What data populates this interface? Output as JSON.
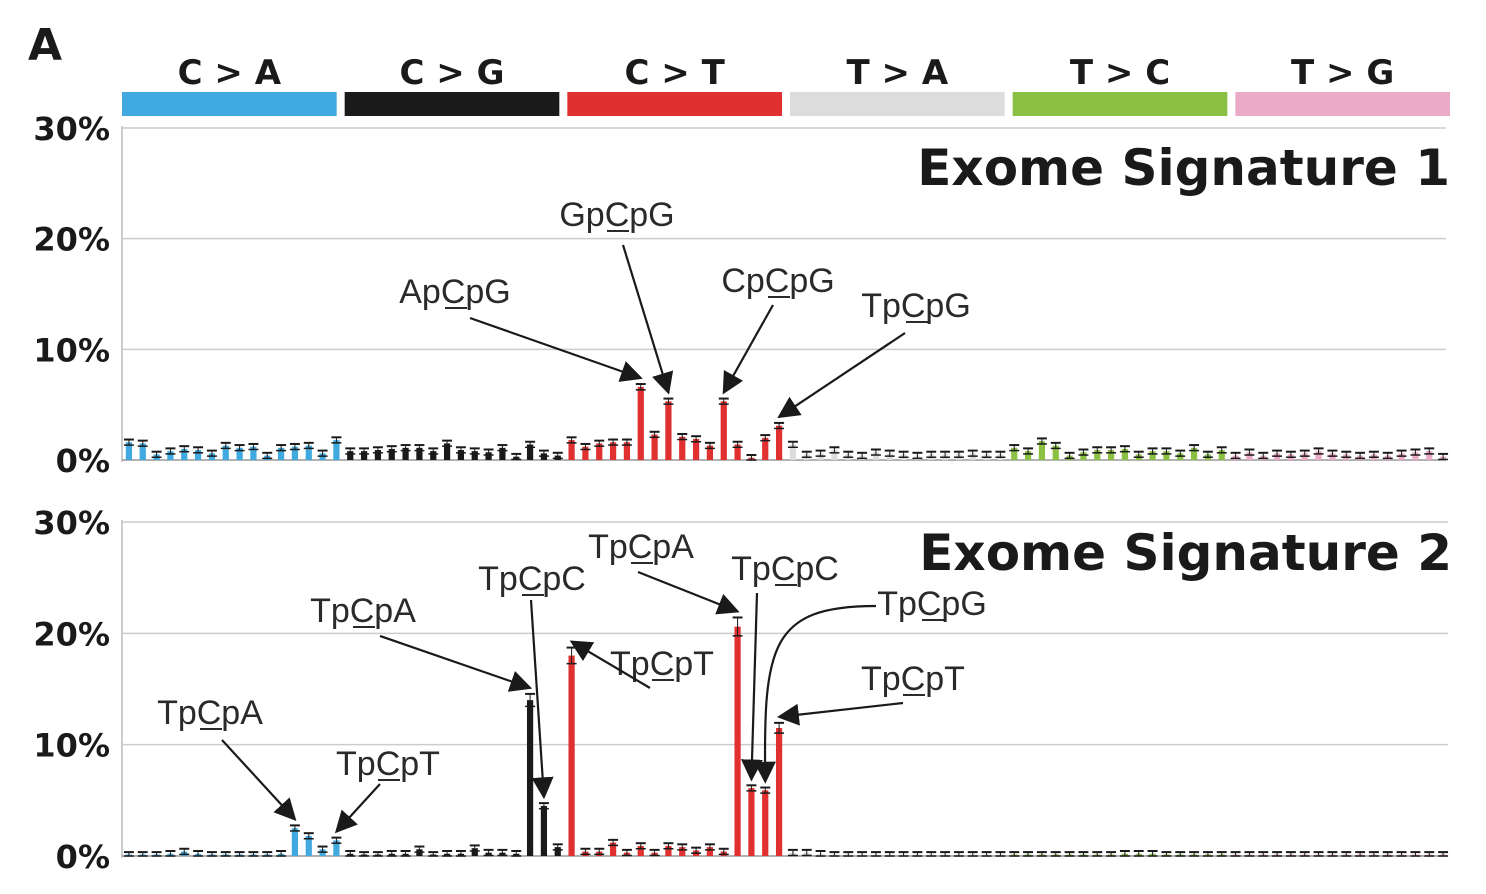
{
  "figure": {
    "panel_letter": "A"
  },
  "chart_data": [
    {
      "type": "bar",
      "title": "Exome Signature 1",
      "ylim": [
        0,
        30
      ],
      "yticks": [
        "0%",
        "10%",
        "20%",
        "30%"
      ],
      "grid": true,
      "categories": [
        "C > A",
        "C > G",
        "C > T",
        "T > A",
        "T > C",
        "T > G"
      ],
      "category_colors": [
        "#3fa9e0",
        "#1a1a1a",
        "#e03030",
        "#dcdcdc",
        "#8cc043",
        "#eaaac8"
      ],
      "values": [
        [
          1.6,
          1.5,
          0.5,
          0.8,
          1.0,
          0.9,
          0.6,
          1.3,
          1.1,
          1.2,
          0.4,
          1.1,
          1.2,
          1.3,
          0.6,
          1.8
        ],
        [
          0.8,
          0.8,
          0.9,
          1.0,
          1.1,
          1.1,
          0.8,
          1.5,
          0.9,
          0.8,
          0.7,
          1.1,
          0.3,
          1.4,
          0.6,
          0.4
        ],
        [
          1.8,
          1.2,
          1.5,
          1.6,
          1.6,
          6.6,
          2.3,
          5.3,
          2.1,
          1.9,
          1.3,
          5.3,
          1.4,
          0.2,
          2.0,
          3.1
        ],
        [
          1.4,
          0.5,
          0.6,
          0.9,
          0.5,
          0.4,
          0.7,
          0.6,
          0.5,
          0.4,
          0.5,
          0.5,
          0.5,
          0.6,
          0.5,
          0.5
        ],
        [
          1.1,
          0.8,
          1.7,
          1.3,
          0.4,
          0.7,
          0.9,
          0.9,
          1.0,
          0.5,
          0.8,
          0.8,
          0.6,
          1.1,
          0.5,
          0.9
        ],
        [
          0.4,
          0.7,
          0.4,
          0.6,
          0.5,
          0.6,
          0.8,
          0.6,
          0.5,
          0.4,
          0.5,
          0.4,
          0.6,
          0.7,
          0.8,
          0.3
        ]
      ],
      "annotations": [
        {
          "text": "ApCpG",
          "category": 2,
          "index": 5
        },
        {
          "text": "GpCpG",
          "category": 2,
          "index": 7
        },
        {
          "text": "CpCpG",
          "category": 2,
          "index": 11
        },
        {
          "text": "TpCpG",
          "category": 2,
          "index": 15
        }
      ]
    },
    {
      "type": "bar",
      "title": "Exome Signature 2",
      "ylim": [
        0,
        30
      ],
      "yticks": [
        "0%",
        "10%",
        "20%",
        "30%"
      ],
      "grid": true,
      "categories": [
        "C > A",
        "C > G",
        "C > T",
        "T > A",
        "T > C",
        "T > G"
      ],
      "category_colors": [
        "#3fa9e0",
        "#1a1a1a",
        "#e03030",
        "#dcdcdc",
        "#8cc043",
        "#eaaac8"
      ],
      "values": [
        [
          0.1,
          0.1,
          0.1,
          0.2,
          0.4,
          0.2,
          0.1,
          0.1,
          0.1,
          0.1,
          0.1,
          0.2,
          2.5,
          1.8,
          0.6,
          1.4
        ],
        [
          0.2,
          0.1,
          0.1,
          0.2,
          0.2,
          0.6,
          0.1,
          0.2,
          0.2,
          0.7,
          0.3,
          0.3,
          0.2,
          14.0,
          4.5,
          0.8
        ],
        [
          18.0,
          0.4,
          0.4,
          1.2,
          0.3,
          0.9,
          0.3,
          0.9,
          0.8,
          0.5,
          0.8,
          0.4,
          20.6,
          6.1,
          5.9,
          11.5
        ],
        [
          0.3,
          0.3,
          0.2,
          0.1,
          0.1,
          0.1,
          0.1,
          0.1,
          0.1,
          0.1,
          0.1,
          0.1,
          0.1,
          0.1,
          0.1,
          0.1
        ],
        [
          0.1,
          0.1,
          0.1,
          0.1,
          0.1,
          0.1,
          0.1,
          0.1,
          0.2,
          0.2,
          0.2,
          0.1,
          0.1,
          0.1,
          0.1,
          0.1
        ],
        [
          0.1,
          0.1,
          0.1,
          0.1,
          0.1,
          0.1,
          0.1,
          0.1,
          0.1,
          0.1,
          0.1,
          0.1,
          0.1,
          0.1,
          0.1,
          0.1
        ]
      ],
      "annotations": [
        {
          "text": "TpCpA",
          "category": 0,
          "index": 12
        },
        {
          "text": "TpCpT",
          "category": 0,
          "index": 15
        },
        {
          "text": "TpCpA",
          "category": 1,
          "index": 13
        },
        {
          "text": "TpCpC",
          "category": 1,
          "index": 14
        },
        {
          "text": "TpCpT",
          "category": 2,
          "index": 0
        },
        {
          "text": "TpCpA",
          "category": 2,
          "index": 12
        },
        {
          "text": "TpCpC",
          "category": 2,
          "index": 13
        },
        {
          "text": "TpCpG",
          "category": 2,
          "index": 14
        },
        {
          "text": "TpCpT",
          "category": 2,
          "index": 15
        }
      ]
    }
  ]
}
